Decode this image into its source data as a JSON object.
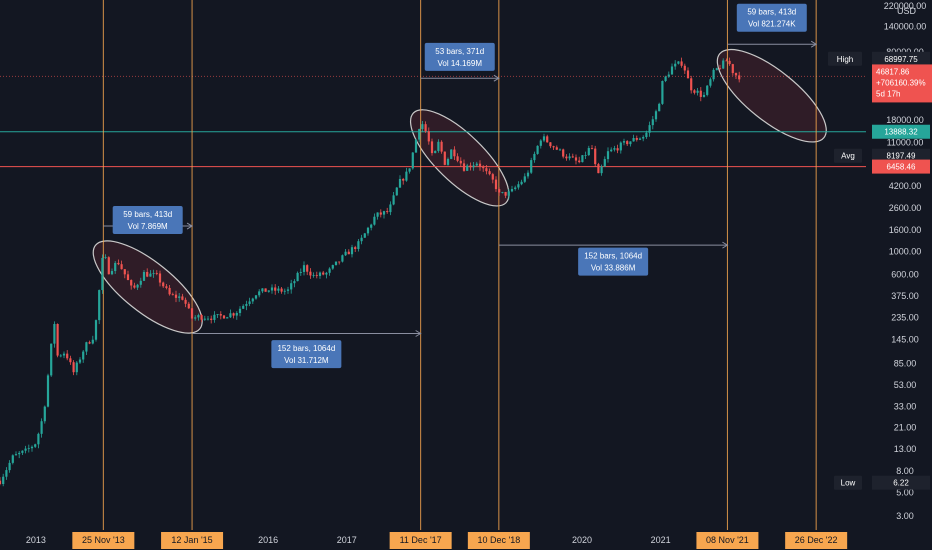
{
  "chart_data": {
    "type": "candlestick",
    "symbol_currency": "USD",
    "y_scale": "log",
    "ylim": [
      2.2,
      220000
    ],
    "y_ticks": [
      {
        "v": 220000,
        "label": "220000.00"
      },
      {
        "v": 140000,
        "label": "140000.00"
      },
      {
        "v": 80000,
        "label": "80000.00"
      },
      {
        "v": 18000,
        "label": "18000.00"
      },
      {
        "v": 11000,
        "label": "11000.00"
      },
      {
        "v": 4200,
        "label": "4200.00"
      },
      {
        "v": 2600,
        "label": "2600.00"
      },
      {
        "v": 1600,
        "label": "1600.00"
      },
      {
        "v": 1000,
        "label": "1000.00"
      },
      {
        "v": 600,
        "label": "600.00"
      },
      {
        "v": 375,
        "label": "375.00"
      },
      {
        "v": 235,
        "label": "235.00"
      },
      {
        "v": 145,
        "label": "145.00"
      },
      {
        "v": 85,
        "label": "85.00"
      },
      {
        "v": 53,
        "label": "53.00"
      },
      {
        "v": 33,
        "label": "33.00"
      },
      {
        "v": 21,
        "label": "21.00"
      },
      {
        "v": 13,
        "label": "13.00"
      },
      {
        "v": 8,
        "label": "8.00"
      },
      {
        "v": 5,
        "label": "5.00"
      },
      {
        "v": 3,
        "label": "3.00"
      }
    ],
    "x_range": [
      "2012-08-01",
      "2023-08-15"
    ],
    "x_year_ticks": [
      {
        "date": "2013-01-15",
        "label": "2013"
      },
      {
        "date": "2016-01-01",
        "label": "2016"
      },
      {
        "date": "2017-01-01",
        "label": "2017"
      },
      {
        "date": "2020-01-01",
        "label": "2020"
      },
      {
        "date": "2021-01-01",
        "label": "2021"
      }
    ],
    "vertical_markers": [
      {
        "date": "2013-11-25",
        "label": "25 Nov '13"
      },
      {
        "date": "2015-01-12",
        "label": "12 Jan '15"
      },
      {
        "date": "2017-12-11",
        "label": "11 Dec '17"
      },
      {
        "date": "2018-12-10",
        "label": "10 Dec '18"
      },
      {
        "date": "2021-11-08",
        "label": "08 Nov '21"
      },
      {
        "date": "2022-12-26",
        "label": "26 Dec '22"
      }
    ],
    "price_path": [
      [
        "2012-08-01",
        6.5
      ],
      [
        "2012-10-01",
        11
      ],
      [
        "2012-12-01",
        12.5
      ],
      [
        "2013-01-15",
        15
      ],
      [
        "2013-02-20",
        28
      ],
      [
        "2013-03-20",
        90
      ],
      [
        "2013-04-10",
        230
      ],
      [
        "2013-04-20",
        100
      ],
      [
        "2013-06-01",
        110
      ],
      [
        "2013-07-10",
        70
      ],
      [
        "2013-09-01",
        125
      ],
      [
        "2013-10-15",
        160
      ],
      [
        "2013-11-25",
        1000
      ],
      [
        "2013-12-20",
        650
      ],
      [
        "2014-02-01",
        800
      ],
      [
        "2014-03-10",
        580
      ],
      [
        "2014-04-10",
        420
      ],
      [
        "2014-06-01",
        620
      ],
      [
        "2014-08-01",
        580
      ],
      [
        "2014-10-01",
        380
      ],
      [
        "2014-12-01",
        360
      ],
      [
        "2015-01-12",
        230
      ],
      [
        "2015-02-15",
        240
      ],
      [
        "2015-05-01",
        235
      ],
      [
        "2015-08-01",
        260
      ],
      [
        "2015-11-05",
        400
      ],
      [
        "2016-01-01",
        430
      ],
      [
        "2016-04-01",
        420
      ],
      [
        "2016-06-15",
        720
      ],
      [
        "2016-08-01",
        580
      ],
      [
        "2016-10-01",
        620
      ],
      [
        "2017-01-01",
        960
      ],
      [
        "2017-03-01",
        1200
      ],
      [
        "2017-05-15",
        2200
      ],
      [
        "2017-07-15",
        2400
      ],
      [
        "2017-09-01",
        4500
      ],
      [
        "2017-10-15",
        5800
      ],
      [
        "2017-12-11",
        18000
      ],
      [
        "2018-01-10",
        13000
      ],
      [
        "2018-02-06",
        7500
      ],
      [
        "2018-03-05",
        11000
      ],
      [
        "2018-04-05",
        6800
      ],
      [
        "2018-05-05",
        9500
      ],
      [
        "2018-07-01",
        6300
      ],
      [
        "2018-09-01",
        7100
      ],
      [
        "2018-11-20",
        4500
      ],
      [
        "2018-12-10",
        3500
      ],
      [
        "2019-02-01",
        3600
      ],
      [
        "2019-04-15",
        5200
      ],
      [
        "2019-06-26",
        12500
      ],
      [
        "2019-08-15",
        10300
      ],
      [
        "2019-10-15",
        8200
      ],
      [
        "2019-12-18",
        7000
      ],
      [
        "2020-02-14",
        10200
      ],
      [
        "2020-03-13",
        5000
      ],
      [
        "2020-05-01",
        8800
      ],
      [
        "2020-07-27",
        11000
      ],
      [
        "2020-10-21",
        12800
      ],
      [
        "2020-12-20",
        23500
      ],
      [
        "2021-01-08",
        40000
      ],
      [
        "2021-02-21",
        57000
      ],
      [
        "2021-04-14",
        64000
      ],
      [
        "2021-05-19",
        37000
      ],
      [
        "2021-07-20",
        30000
      ],
      [
        "2021-09-07",
        52000
      ],
      [
        "2021-11-08",
        67500
      ],
      [
        "2021-12-10",
        49000
      ],
      [
        "2022-01-05",
        46800
      ]
    ],
    "ellipses": [
      {
        "from": "2013-11-25",
        "from_price": 1000,
        "to": "2015-01-12",
        "to_price": 210
      },
      {
        "from": "2017-12-11",
        "from_price": 18000,
        "to": "2018-12-10",
        "to_price": 3400
      },
      {
        "from": "2021-11-08",
        "from_price": 67000,
        "to": "2022-12-26",
        "to_price": 14000
      }
    ],
    "range_measures": [
      {
        "from": "2013-11-25",
        "to": "2015-01-12",
        "price": 1750,
        "bars": "59 bars, 413d",
        "vol": "Vol 7.869M",
        "box_price": 2000
      },
      {
        "from": "2015-01-12",
        "to": "2017-12-11",
        "price": 165,
        "bars": "152 bars, 1064d",
        "vol": "Vol 31.712M",
        "box_price": 105
      },
      {
        "from": "2017-12-11",
        "to": "2018-12-10",
        "price": 45000,
        "bars": "53 bars, 371d",
        "vol": "Vol 14.169M",
        "box_price": 72000
      },
      {
        "from": "2018-12-10",
        "to": "2021-11-08",
        "price": 1150,
        "bars": "152 bars, 1064d",
        "vol": "Vol 33.886M",
        "box_price": 800
      },
      {
        "from": "2021-11-08",
        "to": "2022-12-26",
        "price": 95000,
        "bars": "59 bars, 413d",
        "vol": "Vol 821.274K",
        "box_price": 170000
      }
    ],
    "horizontal_lines": [
      {
        "price": 13888.32,
        "color": "#26a69a"
      },
      {
        "price": 6458.46,
        "color": "#ef5350"
      },
      {
        "price": 46817.86,
        "color": "#ef5350",
        "dotted": true
      }
    ],
    "price_labels": [
      {
        "text": "High",
        "kind": "tag",
        "price": 68997.75
      },
      {
        "text": "68997.75",
        "kind": "box",
        "price": 68997.75,
        "color": "#1e222d"
      },
      {
        "text": "13888.32",
        "kind": "box",
        "price": 13888.32,
        "color": "#26a69a",
        "text_color": "#131722"
      },
      {
        "text": "Avg",
        "kind": "tag",
        "price": 8197.49
      },
      {
        "text": "8197.49",
        "kind": "box",
        "price": 8197.49,
        "color": "#1e222d"
      },
      {
        "text": "6458.46",
        "kind": "box",
        "price": 6458.46,
        "color": "#ef5350"
      },
      {
        "text": "Low",
        "kind": "tag",
        "price": 6.22
      },
      {
        "text": "6.22",
        "kind": "box",
        "price": 6.22,
        "color": "#1e222d"
      }
    ],
    "current_price": {
      "price": "46817.86",
      "change": "+706160.39%",
      "countdown": "5d 17h",
      "color": "#ef5350",
      "value": 46817.86
    },
    "colors": {
      "background": "#131722",
      "up": "#26a69a",
      "down": "#ef5350",
      "marker_line": "#f7a64f",
      "measure_line": "#8a8ea0",
      "annotation_box": "#4a76b8",
      "ellipse_fill": "#3a1f2a",
      "ellipse_stroke": "#c8c8c8"
    }
  }
}
